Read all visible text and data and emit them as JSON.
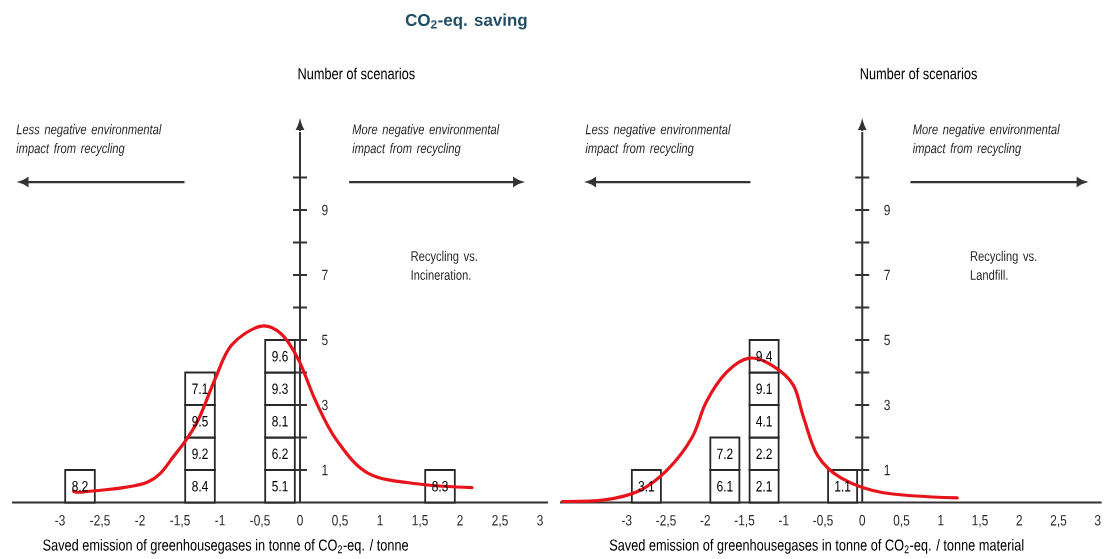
{
  "chart_data": [
    {
      "type": "bar",
      "stacked": true,
      "title": "CO$_{2}$-eq. saving",
      "ylabel": "Number of scenarios",
      "xlabel": "Saved emission of greenhousegases in tonne of CO$_{2}$-eq. / tonne",
      "annotations": [
        "Less negative environmental impact from recycling",
        "More negative environmental impact from recycling",
        "Recycling vs. Incineration.",
        "8.2",
        "8.4",
        "5.1",
        "8.3",
        "9.2",
        "6.2",
        "9.5",
        "8.1",
        "7.1",
        "9.3",
        "9.6"
      ],
      "x": [
        -2.75,
        -1.25,
        -0.25,
        1.75
      ],
      "series": [
        {
          "color": "#ffffff",
          "values": [
            1,
            1,
            1,
            1
          ]
        },
        {
          "color": "#ffffff",
          "values": [
            null,
            1,
            1,
            null
          ]
        },
        {
          "color": "#ffffff",
          "values": [
            null,
            1,
            1,
            null
          ]
        },
        {
          "color": "#ffffff",
          "values": [
            null,
            1,
            1,
            null
          ]
        },
        {
          "color": "#ffffff",
          "values": [
            null,
            null,
            1,
            null
          ]
        },
        {
          "type": "line",
          "color": "#e8141c",
          "x": [
            -2.83,
            -2.68,
            -1.91,
            -1.56,
            -1.29,
            -1.07,
            -0.86,
            -0.5,
            -0.24,
            -0.02,
            0.2,
            0.46,
            0.86,
            1.51,
            2.15
          ],
          "values": [
            0.35,
            0.33,
            0.62,
            1.48,
            2.45,
            3.75,
            4.83,
            5.42,
            5.2,
            4.4,
            3.1,
            1.91,
            0.89,
            0.56,
            0.46
          ]
        }
      ],
      "xlim": [
        -3.6,
        3.1
      ],
      "ylim": [
        0,
        11.4
      ],
      "xticks": [
        -3,
        {
          "value": -2.5,
          "label": "-2,5"
        },
        -2,
        {
          "value": -1.5,
          "label": "-1,5"
        },
        -1,
        {
          "value": -0.5,
          "label": "-0,5"
        },
        0,
        {
          "value": 0.5,
          "label": "0,5"
        },
        1,
        {
          "value": 1.5,
          "label": "1,5"
        },
        2,
        {
          "value": 2.5,
          "label": "2,5"
        },
        3
      ],
      "yticks": [
        1,
        {
          "value": 2,
          "label": null
        },
        3,
        {
          "value": 4,
          "label": null
        },
        5,
        {
          "value": 6,
          "label": null
        },
        7,
        {
          "value": 8,
          "label": null
        },
        9,
        {
          "value": 10,
          "label": null
        }
      ]
    },
    {
      "type": "bar",
      "stacked": true,
      "ylabel": "Number of scenarios",
      "xlabel": "Saved emission of greenhousegases in tonne of CO$_{2}$-eq. / tonne material",
      "annotations": [
        "Less negative environmental impact from recycling",
        "More negative environmental impact from recycling",
        "Recycling vs. Landfill.",
        "3.1",
        "6.1",
        "2.1",
        "1.1",
        "7.2",
        "2.2",
        "4.1",
        "9.1",
        "9.4"
      ],
      "x": [
        -2.75,
        -1.75,
        -1.25,
        -0.25
      ],
      "series": [
        {
          "color": "#ffffff",
          "values": [
            1,
            1,
            1,
            1
          ]
        },
        {
          "color": "#ffffff",
          "values": [
            null,
            1,
            1,
            null
          ]
        },
        {
          "color": "#ffffff",
          "values": [
            null,
            null,
            1,
            null
          ]
        },
        {
          "color": "#ffffff",
          "values": [
            null,
            null,
            1,
            null
          ]
        },
        {
          "color": "#ffffff",
          "values": [
            null,
            null,
            1,
            null
          ]
        },
        {
          "type": "line",
          "color": "#e8141c",
          "x": [
            -3.82,
            -3.28,
            -2.84,
            -2.48,
            -2.17,
            -1.99,
            -1.73,
            -1.44,
            -1.15,
            -0.88,
            -0.75,
            -0.57,
            -0.26,
            0.27,
            1.21
          ],
          "values": [
            0.03,
            0.08,
            0.36,
            1.01,
            1.99,
            3.08,
            4.0,
            4.44,
            4.22,
            3.62,
            2.64,
            1.45,
            0.74,
            0.3,
            0.14
          ]
        }
      ],
      "xlim": [
        -3.85,
        3.05
      ],
      "ylim": [
        0,
        11.4
      ],
      "xticks": [
        -3,
        {
          "value": -2.5,
          "label": "-2,5"
        },
        -2,
        {
          "value": -1.5,
          "label": "-1,5"
        },
        -1,
        {
          "value": -0.5,
          "label": "-0,5"
        },
        0,
        {
          "value": 0.5,
          "label": "0,5"
        },
        1,
        {
          "value": 1.5,
          "label": "1,5"
        },
        2,
        {
          "value": 2.5,
          "label": "2,5"
        },
        3
      ],
      "yticks": [
        1,
        {
          "value": 2,
          "label": null
        },
        3,
        {
          "value": 4,
          "label": null
        },
        5,
        {
          "value": 6,
          "label": null
        },
        7,
        {
          "value": 8,
          "label": null
        },
        9,
        {
          "value": 10,
          "label": null
        }
      ]
    }
  ]
}
